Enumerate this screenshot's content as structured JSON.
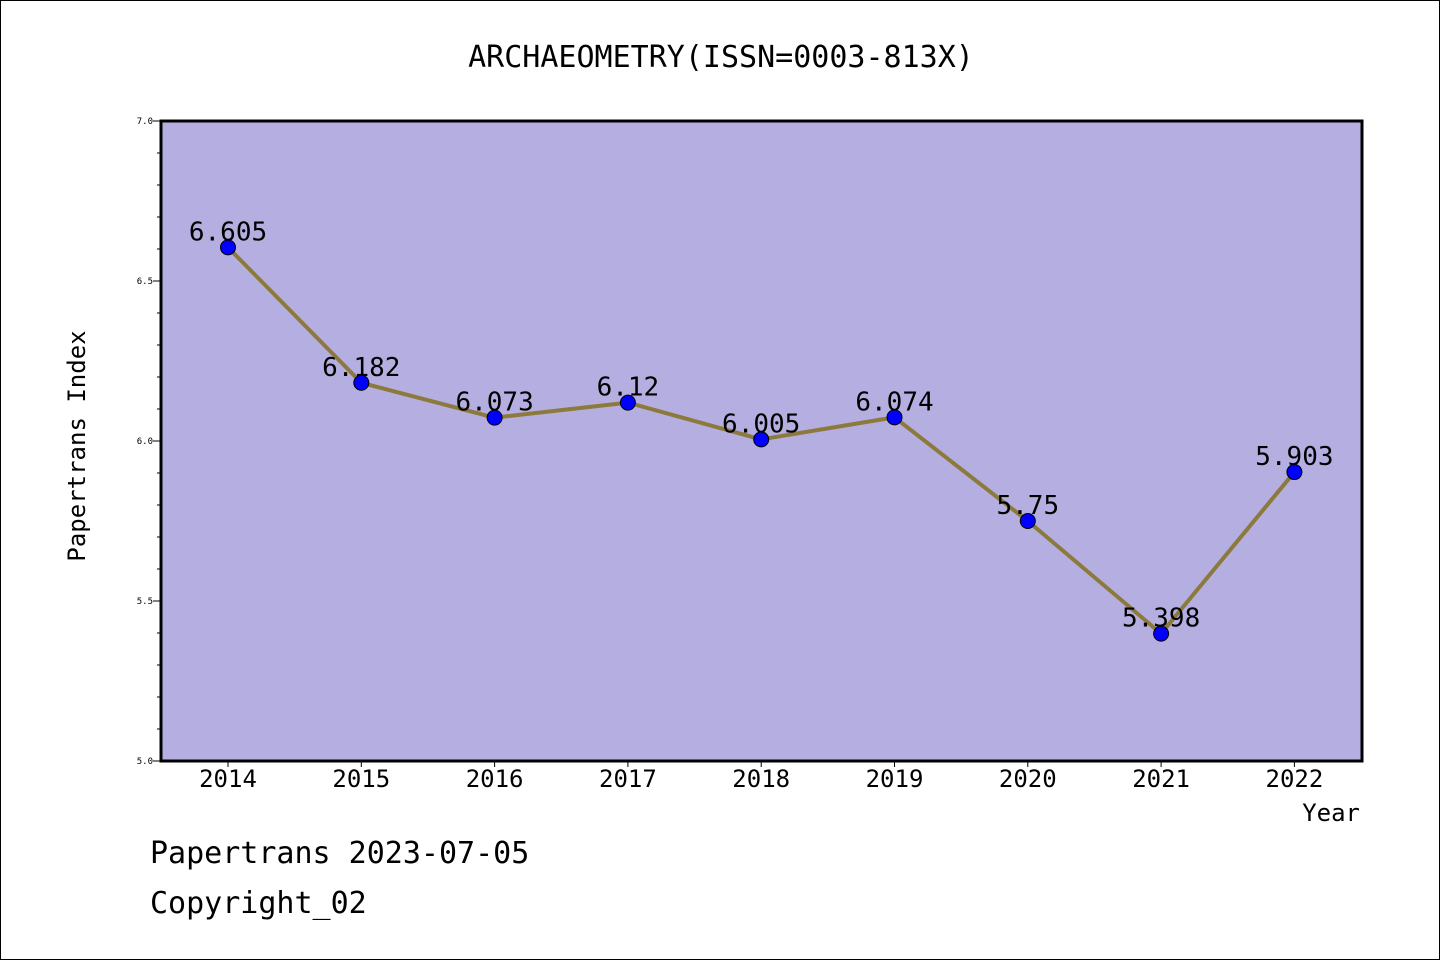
{
  "chart_data": {
    "type": "line",
    "title": "ARCHAEOMETRY(ISSN=0003-813X)",
    "xlabel": "Year",
    "ylabel": "Papertrans Index",
    "categories": [
      "2014",
      "2015",
      "2016",
      "2017",
      "2018",
      "2019",
      "2020",
      "2021",
      "2022"
    ],
    "values": [
      6.605,
      6.182,
      6.073,
      6.12,
      6.005,
      6.074,
      5.75,
      5.398,
      5.903
    ],
    "value_labels": [
      "6.605",
      "6.182",
      "6.073",
      "6.12",
      "6.005",
      "6.074",
      "5.75",
      "5.398",
      "5.903"
    ],
    "ylim": [
      5.0,
      7.0
    ],
    "yticks": [
      "5.0",
      "5.5",
      "6.0",
      "6.5",
      "7.0"
    ],
    "grid": false,
    "colors": {
      "plot_background": "#b5aee1",
      "line": "#8b7a3c",
      "marker": "#0000ff"
    }
  },
  "footer": {
    "date_line": "Papertrans 2023-07-05",
    "copyright": "Copyright_02"
  }
}
